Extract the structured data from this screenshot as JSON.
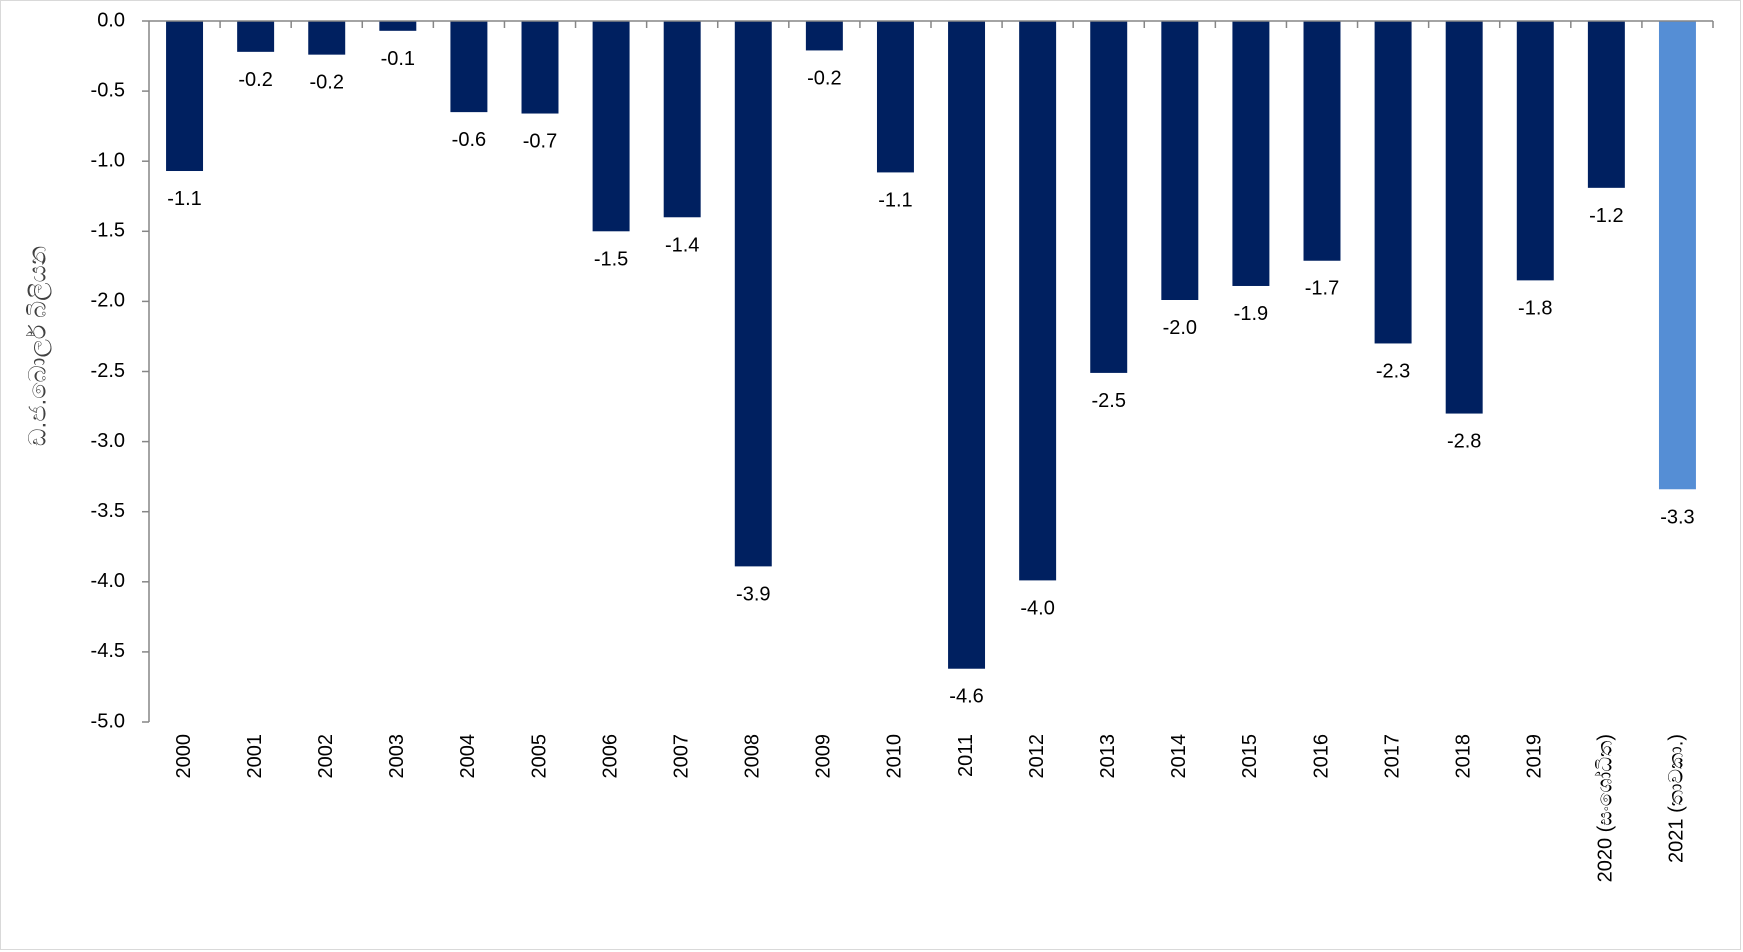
{
  "chart_data": {
    "type": "bar",
    "title": "",
    "xlabel": "",
    "ylabel": "ඩ.ජ.බොලර් බිලියන",
    "ylim": [
      -5.0,
      0.0
    ],
    "yticks": [
      "0.0",
      "-0.5",
      "-1.0",
      "-1.5",
      "-2.0",
      "-2.5",
      "-3.0",
      "-3.5",
      "-4.0",
      "-4.5",
      "-5.0"
    ],
    "grid": false,
    "legend": "none",
    "categories": [
      "2000",
      "2001",
      "2002",
      "2003",
      "2004",
      "2005",
      "2006",
      "2007",
      "2008",
      "2009",
      "2010",
      "2011",
      "2012",
      "2013",
      "2014",
      "2015",
      "2016",
      "2017",
      "2018",
      "2019",
      "2020 (සංශෝධිත)",
      "2021 (තාවකා.)"
    ],
    "values": [
      -1.07,
      -0.22,
      -0.24,
      -0.07,
      -0.65,
      -0.66,
      -1.5,
      -1.4,
      -3.89,
      -0.21,
      -1.08,
      -4.62,
      -3.99,
      -2.51,
      -1.99,
      -1.89,
      -1.71,
      -2.3,
      -2.8,
      -1.85,
      -1.19,
      -3.34
    ],
    "data_labels": [
      "-1.1",
      "-0.2",
      "-0.2",
      "-0.1",
      "-0.6",
      "-0.7",
      "-1.5",
      "-1.4",
      "-3.9",
      "-0.2",
      "-1.1",
      "-4.6",
      "-4.0",
      "-2.5",
      "-2.0",
      "-1.9",
      "-1.7",
      "-2.3",
      "-2.8",
      "-1.8",
      "-1.2",
      "-3.3"
    ],
    "colors": {
      "bar": "#002060",
      "highlight": "#558ED5",
      "axis": "#868686"
    },
    "highlight_index": 21
  }
}
